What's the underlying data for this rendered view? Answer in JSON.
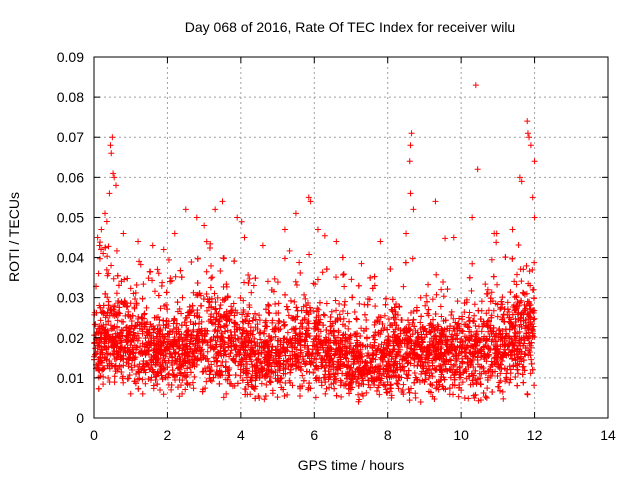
{
  "chart_data": {
    "type": "scatter",
    "title": "Day 068 of 2016, Rate Of TEC Index for receiver wilu",
    "xlabel": "GPS time / hours",
    "ylabel": "ROTI / TECUs",
    "xlim": [
      0,
      14
    ],
    "ylim": [
      0,
      0.09
    ],
    "xticks": [
      "0",
      "2",
      "4",
      "6",
      "8",
      "10",
      "12",
      "14"
    ],
    "yticks": [
      "0",
      "0.01",
      "0.02",
      "0.03",
      "0.04",
      "0.05",
      "0.06",
      "0.07",
      "0.08",
      "0.09"
    ],
    "grid": true,
    "marker": "+",
    "color": "#ff0000",
    "series": [
      {
        "name": "ROTI",
        "points": [
          [
            0.45,
            0.068
          ],
          [
            0.47,
            0.066
          ],
          [
            0.5,
            0.07
          ],
          [
            0.52,
            0.061
          ],
          [
            0.55,
            0.06
          ],
          [
            0.42,
            0.056
          ],
          [
            0.6,
            0.058
          ],
          [
            0.3,
            0.051
          ],
          [
            0.35,
            0.049
          ],
          [
            0.2,
            0.047
          ],
          [
            0.1,
            0.045
          ],
          [
            0.15,
            0.043
          ],
          [
            0.25,
            0.041
          ],
          [
            0.8,
            0.046
          ],
          [
            1.2,
            0.044
          ],
          [
            1.6,
            0.043
          ],
          [
            1.9,
            0.042
          ],
          [
            2.2,
            0.046
          ],
          [
            2.5,
            0.052
          ],
          [
            2.8,
            0.05
          ],
          [
            3.3,
            0.052
          ],
          [
            3.5,
            0.054
          ],
          [
            3.0,
            0.048
          ],
          [
            3.9,
            0.05
          ],
          [
            4.1,
            0.045
          ],
          [
            4.6,
            0.043
          ],
          [
            5.2,
            0.047
          ],
          [
            5.5,
            0.051
          ],
          [
            5.9,
            0.054
          ],
          [
            5.85,
            0.055
          ],
          [
            6.1,
            0.047
          ],
          [
            6.6,
            0.044
          ],
          [
            7.8,
            0.044
          ],
          [
            8.5,
            0.046
          ],
          [
            8.65,
            0.071
          ],
          [
            8.62,
            0.068
          ],
          [
            8.6,
            0.064
          ],
          [
            8.62,
            0.056
          ],
          [
            8.7,
            0.052
          ],
          [
            9.3,
            0.054
          ],
          [
            9.8,
            0.045
          ],
          [
            10.4,
            0.083
          ],
          [
            10.45,
            0.062
          ],
          [
            10.3,
            0.05
          ],
          [
            10.9,
            0.046
          ],
          [
            11.4,
            0.047
          ],
          [
            11.6,
            0.06
          ],
          [
            11.65,
            0.059
          ],
          [
            11.8,
            0.074
          ],
          [
            11.82,
            0.071
          ],
          [
            11.85,
            0.07
          ],
          [
            11.9,
            0.068
          ],
          [
            12.0,
            0.064
          ],
          [
            11.95,
            0.055
          ],
          [
            12.0,
            0.05
          ],
          [
            1.0,
            0.006
          ],
          [
            2.1,
            0.007
          ],
          [
            3.6,
            0.006
          ],
          [
            4.5,
            0.005
          ],
          [
            6.3,
            0.006
          ],
          [
            7.3,
            0.006
          ],
          [
            8.9,
            0.004
          ],
          [
            10.1,
            0.005
          ],
          [
            10.7,
            0.005
          ],
          [
            11.8,
            0.006
          ]
        ],
        "cloud": [
          [
            0.0,
            0.0185,
            0.0115
          ],
          [
            0.5,
            0.02,
            0.013
          ],
          [
            1.0,
            0.018,
            0.011
          ],
          [
            1.5,
            0.017,
            0.011
          ],
          [
            2.0,
            0.0165,
            0.011
          ],
          [
            2.5,
            0.0175,
            0.012
          ],
          [
            3.0,
            0.019,
            0.013
          ],
          [
            3.5,
            0.019,
            0.013
          ],
          [
            4.0,
            0.018,
            0.012
          ],
          [
            4.5,
            0.015,
            0.011
          ],
          [
            5.0,
            0.015,
            0.011
          ],
          [
            5.5,
            0.017,
            0.012
          ],
          [
            6.0,
            0.018,
            0.012
          ],
          [
            6.5,
            0.016,
            0.011
          ],
          [
            7.0,
            0.014,
            0.009
          ],
          [
            7.5,
            0.014,
            0.009
          ],
          [
            8.0,
            0.015,
            0.011
          ],
          [
            8.5,
            0.017,
            0.012
          ],
          [
            9.0,
            0.016,
            0.011
          ],
          [
            9.5,
            0.016,
            0.011
          ],
          [
            10.0,
            0.016,
            0.011
          ],
          [
            10.5,
            0.016,
            0.012
          ],
          [
            11.0,
            0.017,
            0.013
          ],
          [
            11.5,
            0.02,
            0.015
          ],
          [
            12.0,
            0.022,
            0.016
          ]
        ]
      }
    ]
  }
}
